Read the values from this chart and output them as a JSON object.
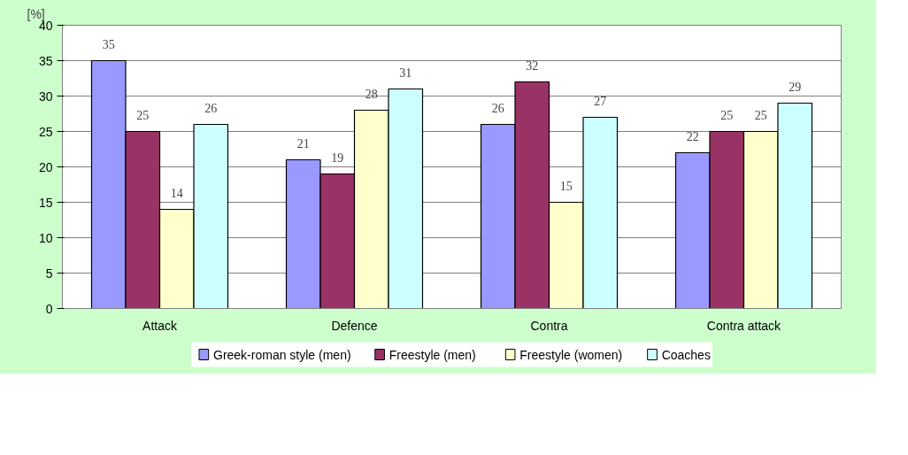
{
  "chart_data": {
    "type": "bar",
    "ylabel": "[%]",
    "categories": [
      "Attack",
      "Defence",
      "Contra",
      "Contra attack"
    ],
    "series": [
      {
        "name": "Greek-roman style (men)",
        "color": "#9999ff",
        "values": [
          35,
          21,
          26,
          22
        ]
      },
      {
        "name": "Freestyle (men)",
        "color": "#993366",
        "values": [
          25,
          19,
          32,
          25
        ]
      },
      {
        "name": "Freestyle (women)",
        "color": "#ffffcc",
        "values": [
          14,
          28,
          15,
          25
        ]
      },
      {
        "name": "Coaches",
        "color": "#ccffff",
        "values": [
          26,
          31,
          27,
          29
        ]
      }
    ],
    "ylim": [
      0,
      40
    ],
    "yticks": [
      0,
      5,
      10,
      15,
      20,
      25,
      30,
      35,
      40
    ],
    "grid": "y",
    "legend": "bottom",
    "data_labels": true
  }
}
